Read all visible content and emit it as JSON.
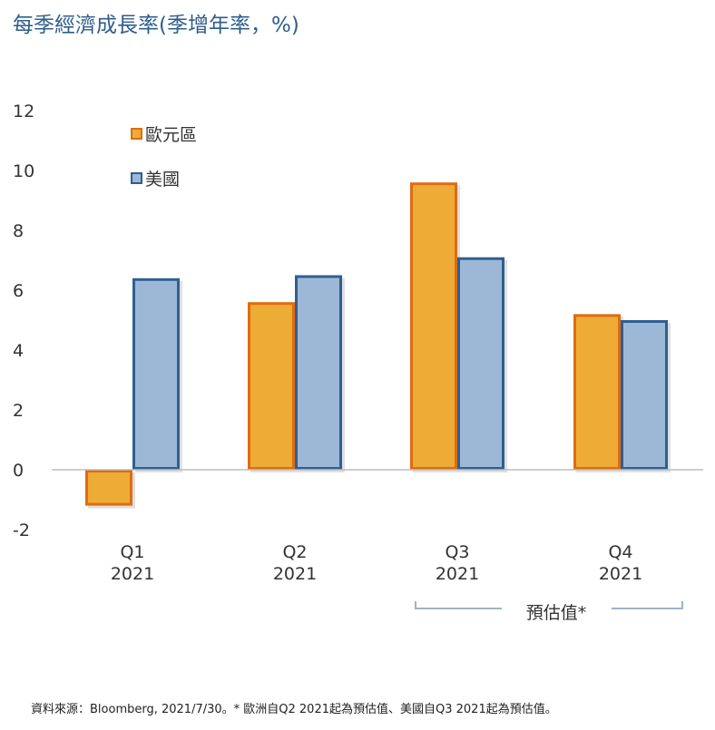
{
  "title": "每季經濟成長率(季增年率，%)",
  "source": "資料來源：Bloomberg, 2021/7/30。* 歐洲自Q2 2021起為預估值、美國自Q3 2021起為預估值。",
  "colors": {
    "eurozone_fill": "#ecac36",
    "eurozone_border": "#e06b12",
    "us_fill": "#9db8d6",
    "us_border": "#2e5f92",
    "axis": "#bdbdbd",
    "bracket": "#9fb3c8"
  },
  "chart_data": {
    "type": "bar",
    "categories": [
      [
        "Q1",
        "2021"
      ],
      [
        "Q2",
        "2021"
      ],
      [
        "Q3",
        "2021"
      ],
      [
        "Q4",
        "2021"
      ]
    ],
    "series": [
      {
        "name": "歐元區",
        "values": [
          -1.2,
          5.6,
          9.6,
          5.2
        ]
      },
      {
        "name": "美國",
        "values": [
          6.4,
          6.5,
          7.1,
          5.0
        ]
      }
    ],
    "yticks": [
      "12",
      "10",
      "8",
      "6",
      "4",
      "2",
      "0",
      "-2"
    ],
    "ylim": [
      -2,
      12
    ],
    "legend_position": "top-left",
    "grid": false,
    "annotations": [
      {
        "text": "預估值*",
        "spans_categories": [
          "Q3",
          "Q4"
        ]
      }
    ]
  }
}
